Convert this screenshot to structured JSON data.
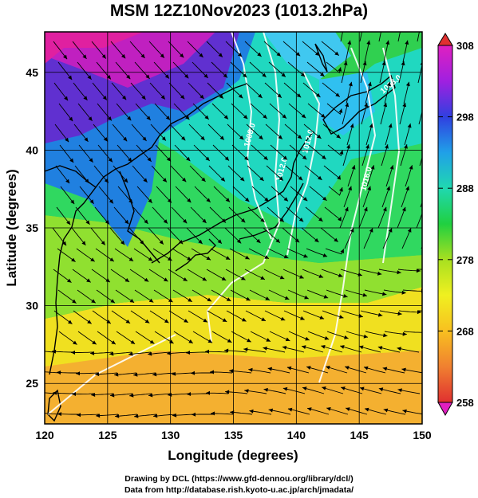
{
  "title": "MSM 12Z10Nov2023 (1013.2hPa)",
  "x_axis": {
    "label": "Longitude (degrees)",
    "ticks": [
      120,
      125,
      130,
      135,
      140,
      145,
      150
    ],
    "range": [
      120,
      150
    ]
  },
  "y_axis": {
    "label": "Latitude  (degrees)",
    "ticks": [
      25,
      30,
      35,
      40,
      45
    ],
    "range": [
      22.4,
      47.6
    ]
  },
  "colorbar": {
    "ticks": [
      258,
      268,
      278,
      288,
      298,
      308
    ],
    "range": [
      258,
      308
    ],
    "colors": [
      "#e020c0",
      "#a020e0",
      "#3040e0",
      "#20a0e8",
      "#20d8b0",
      "#20d040",
      "#a8e020",
      "#f0f020",
      "#f8c020",
      "#f08030",
      "#e03030"
    ]
  },
  "isobars": [
    {
      "value": "1008.0"
    },
    {
      "value": "1012.0"
    },
    {
      "value": "1016.0"
    },
    {
      "value": "1020.0"
    },
    {
      "value": "1024.0"
    }
  ],
  "credits": {
    "line1": "Drawing by DCL (https://www.gfd-dennou.org/library/dcl/)",
    "line2": "Data from http://database.rish.kyoto-u.ac.jp/arch/jmadata/"
  }
}
